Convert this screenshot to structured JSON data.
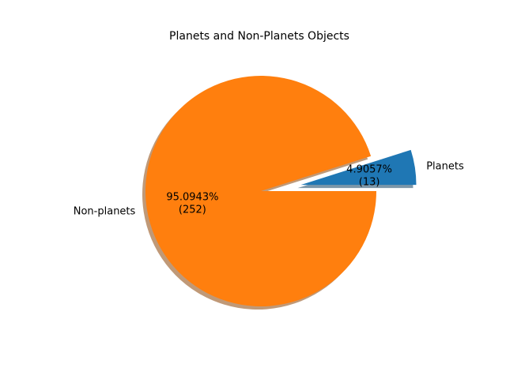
{
  "chart_data": {
    "type": "pie",
    "title": "Planets and Non-Planets Objects",
    "slices": [
      {
        "label": "Planets",
        "value": 13,
        "percent_label": "4.9057%",
        "count_label": "(13)",
        "color": "#1f77b4",
        "exploded": true
      },
      {
        "label": "Non-planets",
        "value": 252,
        "percent_label": "95.0943%",
        "count_label": "(252)",
        "color": "#ff7f0e",
        "exploded": false
      }
    ],
    "start_angle_deg": 0,
    "shadow": true
  }
}
